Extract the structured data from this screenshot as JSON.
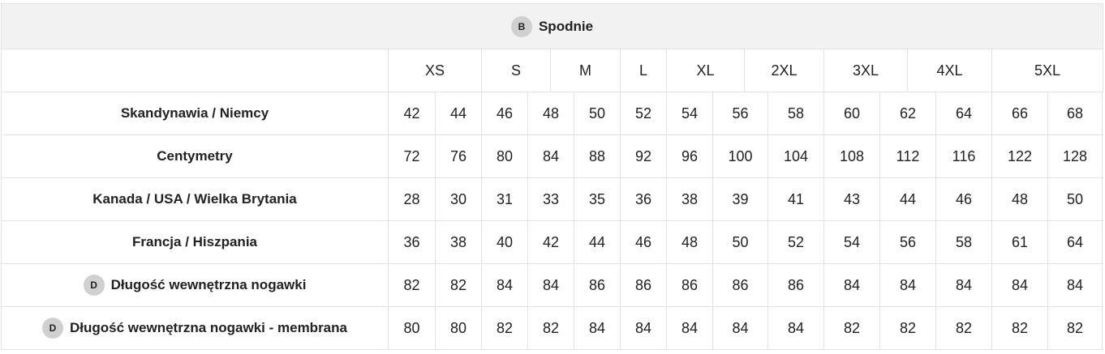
{
  "title": {
    "badge": "B",
    "text": "Spodnie"
  },
  "sizes": [
    "XS",
    "S",
    "M",
    "L",
    "XL",
    "2XL",
    "3XL",
    "4XL",
    "5XL"
  ],
  "rows": [
    {
      "label": "Skandynawia / Niemcy",
      "badge": "",
      "values": [
        "42",
        "44",
        "46",
        "48",
        "50",
        "52",
        "54",
        "56",
        "58",
        "60",
        "62",
        "64",
        "66",
        "68"
      ]
    },
    {
      "label": "Centymetry",
      "badge": "",
      "values": [
        "72",
        "76",
        "80",
        "84",
        "88",
        "92",
        "96",
        "100",
        "104",
        "108",
        "112",
        "116",
        "122",
        "128"
      ]
    },
    {
      "label": "Kanada / USA / Wielka Brytania",
      "badge": "",
      "values": [
        "28",
        "30",
        "31",
        "33",
        "35",
        "36",
        "38",
        "39",
        "41",
        "43",
        "44",
        "46",
        "48",
        "50"
      ]
    },
    {
      "label": "Francja / Hiszpania",
      "badge": "",
      "values": [
        "36",
        "38",
        "40",
        "42",
        "44",
        "46",
        "48",
        "50",
        "52",
        "54",
        "56",
        "58",
        "61",
        "64"
      ]
    },
    {
      "label": "Długość wewnętrzna nogawki",
      "badge": "D",
      "values": [
        "82",
        "82",
        "84",
        "84",
        "86",
        "86",
        "86",
        "86",
        "86",
        "84",
        "84",
        "84",
        "84",
        "84"
      ]
    },
    {
      "label": "Długość wewnętrzna nogawki - membrana",
      "badge": "D",
      "values": [
        "80",
        "80",
        "82",
        "82",
        "84",
        "84",
        "84",
        "84",
        "84",
        "82",
        "82",
        "82",
        "82",
        "82"
      ]
    }
  ]
}
